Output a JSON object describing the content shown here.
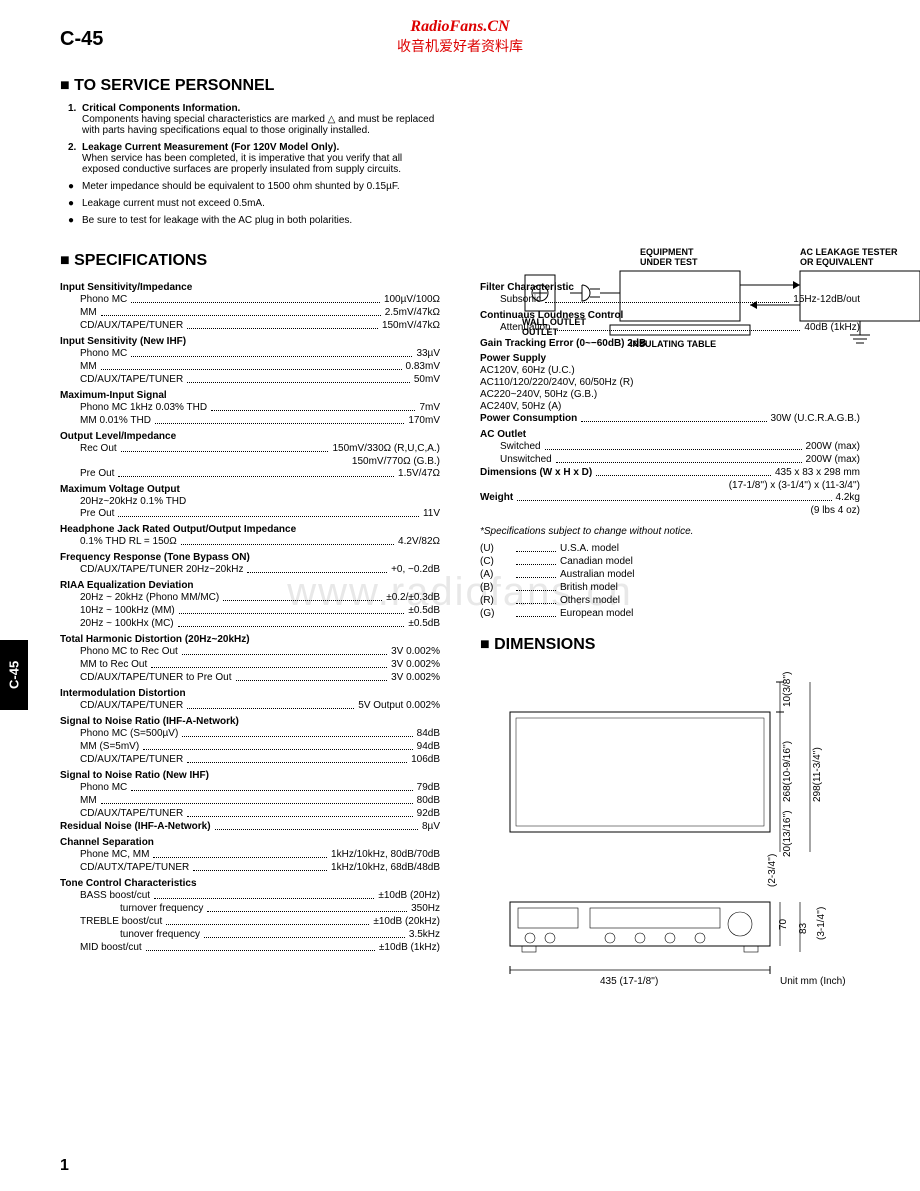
{
  "watermark": {
    "line1": "RadioFans.CN",
    "line2": "收音机爱好者资料库",
    "bg": "www.radiofans.cn"
  },
  "model": "C-45",
  "page_number": "1",
  "sections": {
    "service_title": "TO SERVICE PERSONNEL",
    "specs_title": "SPECIFICATIONS",
    "dims_title": "DIMENSIONS"
  },
  "service": [
    {
      "ix": "1.",
      "bold": "Critical Components Information.",
      "rest": "Components having special characteristics are marked △ and must be replaced with parts having specifications equal to those originally installed."
    },
    {
      "ix": "2.",
      "bold": "Leakage Current Measurement (For 120V Model Only).",
      "rest": "When service has been completed, it is imperative that you verify that all exposed conductive surfaces are properly insulated from supply circuits."
    },
    {
      "ix": "●",
      "bold": "",
      "rest": "Meter impedance should be equivalent to 1500 ohm shunted by 0.15µF."
    },
    {
      "ix": "●",
      "bold": "",
      "rest": "Leakage current must not exceed 0.5mA."
    },
    {
      "ix": "●",
      "bold": "",
      "rest": "Be sure to test for leakage with the AC plug in both polarities."
    }
  ],
  "diagram": {
    "wall": "WALL OUTLET",
    "equip": "EQUIPMENT UNDER TEST",
    "tester": "AC LEAKAGE TESTER OR EQUIVALENT",
    "table": "INSULATING TABLE"
  },
  "specs_left": [
    {
      "t": "h",
      "k": "Input Sensitivity/Impedance"
    },
    {
      "t": "r",
      "k": "Phono MC",
      "v": "100µV/100Ω",
      "i": 1
    },
    {
      "t": "r",
      "k": "MM",
      "v": "2.5mV/47kΩ",
      "i": 1
    },
    {
      "t": "r",
      "k": "CD/AUX/TAPE/TUNER",
      "v": "150mV/47kΩ",
      "i": 1
    },
    {
      "t": "h",
      "k": "Input Sensitivity (New IHF)"
    },
    {
      "t": "r",
      "k": "Phono MC",
      "v": "33µV",
      "i": 1
    },
    {
      "t": "r",
      "k": "MM",
      "v": "0.83mV",
      "i": 1
    },
    {
      "t": "r",
      "k": "CD/AUX/TAPE/TUNER",
      "v": "50mV",
      "i": 1
    },
    {
      "t": "h",
      "k": "Maximum-Input Signal"
    },
    {
      "t": "r",
      "k": "Phono MC 1kHz 0.03% THD",
      "v": "7mV",
      "i": 1
    },
    {
      "t": "r",
      "k": "MM       0.01% THD",
      "v": "170mV",
      "i": 1
    },
    {
      "t": "h",
      "k": "Output Level/Impedance"
    },
    {
      "t": "r",
      "k": "Rec Out",
      "v": "150mV/330Ω (R,U,C,A.)",
      "i": 1
    },
    {
      "t": "v",
      "v": "150mV/770Ω (G.B.)"
    },
    {
      "t": "r",
      "k": "Pre Out",
      "v": "1.5V/47Ω",
      "i": 1
    },
    {
      "t": "h",
      "k": "Maximum Voltage Output"
    },
    {
      "t": "r",
      "k": "20Hz~20kHz 0.1% THD",
      "v": "",
      "i": 1
    },
    {
      "t": "r",
      "k": "Pre Out",
      "v": "11V",
      "i": 1
    },
    {
      "t": "h",
      "k": "Headphone Jack Rated Output/Output Impedance"
    },
    {
      "t": "r",
      "k": "0.1% THD RL = 150Ω",
      "v": "4.2V/82Ω",
      "i": 1
    },
    {
      "t": "h",
      "k": "Frequency Response (Tone Bypass ON)"
    },
    {
      "t": "r",
      "k": "CD/AUX/TAPE/TUNER 20Hz~20kHz",
      "v": "+0, −0.2dB",
      "i": 1
    },
    {
      "t": "h",
      "k": "RIAA Equalization Deviation"
    },
    {
      "t": "r",
      "k": "20Hz ~ 20kHz (Phono MM/MC)",
      "v": "±0.2/±0.3dB",
      "i": 1
    },
    {
      "t": "r",
      "k": "10Hz ~ 100kHz (MM)",
      "v": "±0.5dB",
      "i": 1
    },
    {
      "t": "r",
      "k": "20Hz ~ 100kHx (MC)",
      "v": "±0.5dB",
      "i": 1
    },
    {
      "t": "h",
      "k": "Total Harmonic Distortion (20Hz~20kHz)"
    },
    {
      "t": "r",
      "k": "Phono MC to Rec Out",
      "v": "3V 0.002%",
      "i": 1
    },
    {
      "t": "r",
      "k": "MM to Rec Out",
      "v": "3V 0.002%",
      "i": 1
    },
    {
      "t": "r",
      "k": "CD/AUX/TAPE/TUNER to Pre Out",
      "v": "3V 0.002%",
      "i": 1
    },
    {
      "t": "h",
      "k": "Intermodulation Distortion"
    },
    {
      "t": "r",
      "k": "CD/AUX/TAPE/TUNER",
      "v": "5V Output 0.002%",
      "i": 1
    },
    {
      "t": "h",
      "k": "Signal to Noise Ratio (IHF-A-Network)"
    },
    {
      "t": "r",
      "k": "Phono MC (S=500µV)",
      "v": "84dB",
      "i": 1
    },
    {
      "t": "r",
      "k": "MM (S=5mV)",
      "v": "94dB",
      "i": 1
    },
    {
      "t": "r",
      "k": "CD/AUX/TAPE/TUNER",
      "v": "106dB",
      "i": 1
    },
    {
      "t": "h",
      "k": "Signal to Noise Ratio (New IHF)"
    },
    {
      "t": "r",
      "k": "Phono MC",
      "v": "79dB",
      "i": 1
    },
    {
      "t": "r",
      "k": "MM",
      "v": "80dB",
      "i": 1
    },
    {
      "t": "r",
      "k": "CD/AUX/TAPE/TUNER",
      "v": "92dB",
      "i": 1
    },
    {
      "t": "r",
      "k": "Residual Noise (IHF-A-Network)",
      "v": "8µV",
      "b": 1
    },
    {
      "t": "h",
      "k": "Channel Separation"
    },
    {
      "t": "r",
      "k": "Phone MC, MM",
      "v": "1kHz/10kHz, 80dB/70dB",
      "i": 1
    },
    {
      "t": "r",
      "k": "CD/AUTX/TAPE/TUNER",
      "v": "1kHz/10kHz, 68dB/48dB",
      "i": 1
    },
    {
      "t": "h",
      "k": "Tone Control Characteristics"
    },
    {
      "t": "r",
      "k": "BASS boost/cut",
      "v": "±10dB (20Hz)",
      "i": 1
    },
    {
      "t": "r",
      "k": "turnover frequency",
      "v": "350Hz",
      "i": 2
    },
    {
      "t": "r",
      "k": "TREBLE boost/cut",
      "v": "±10dB (20kHz)",
      "i": 1
    },
    {
      "t": "r",
      "k": "tunover frequency",
      "v": "3.5kHz",
      "i": 2
    },
    {
      "t": "r",
      "k": "MID boost/cut",
      "v": "±10dB (1kHz)",
      "i": 1
    }
  ],
  "specs_right": [
    {
      "t": "h",
      "k": "Filter Characteristic"
    },
    {
      "t": "r",
      "k": "Subsonic",
      "v": "15Hz-12dB/out",
      "i": 1
    },
    {
      "t": "h",
      "k": "Continuaus Loudness Control"
    },
    {
      "t": "r",
      "k": "Attenuation",
      "v": "40dB (1kHz)",
      "i": 1
    },
    {
      "t": "h",
      "k": "Gain Tracking Error (0~−60dB) 2dB"
    },
    {
      "t": "h",
      "k": "Power Supply"
    },
    {
      "t": "p",
      "k": "AC120V, 60Hz (U.C.)"
    },
    {
      "t": "p",
      "k": "AC110/120/220/240V, 60/50Hz (R)"
    },
    {
      "t": "p",
      "k": "AC220~240V, 50Hz (G.B.)"
    },
    {
      "t": "p",
      "k": "AC240V, 50Hz (A)"
    },
    {
      "t": "r",
      "k": "Power Consumption",
      "v": "30W (U.C.R.A.G.B.)",
      "b": 1
    },
    {
      "t": "h",
      "k": "AC Outlet"
    },
    {
      "t": "r",
      "k": "Switched",
      "v": "200W (max)",
      "i": 1
    },
    {
      "t": "r",
      "k": "Unswitched",
      "v": "200W (max)",
      "i": 1
    },
    {
      "t": "r",
      "k": "Dimensions (W x H x D)",
      "v": "435 x 83 x 298 mm",
      "b": 1
    },
    {
      "t": "v",
      "v": "(17-1/8'') x (3-1/4'') x (11-3/4'')"
    },
    {
      "t": "r",
      "k": "Weight",
      "v": "4.2kg",
      "b": 1
    },
    {
      "t": "v",
      "v": "(9 lbs 4 oz)"
    }
  ],
  "spec_note": "*Specifications subject to change without notice.",
  "model_codes": [
    {
      "k": "(U)",
      "v": "U.S.A. model"
    },
    {
      "k": "(C)",
      "v": "Canadian model"
    },
    {
      "k": "(A)",
      "v": "Australian model"
    },
    {
      "k": "(B)",
      "v": "British model"
    },
    {
      "k": "(R)",
      "v": "Others model"
    },
    {
      "k": "(G)",
      "v": "European model"
    }
  ],
  "dims": {
    "top_h": "10(3/8'')",
    "side_268": "268(10-9/16'')",
    "side_298": "298(11-3/4'')",
    "bot_20": "20(13/16'')",
    "bot_2_34": "(2-3/4'')",
    "width": "435 (17-1/8'')",
    "h70": "70",
    "h83": "83",
    "h314": "(3-1/4'')",
    "unit": "Unit  mm (Inch)"
  }
}
